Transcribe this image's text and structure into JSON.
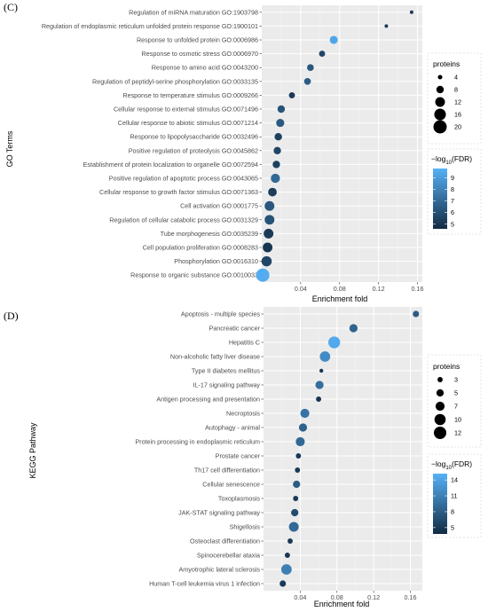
{
  "chart_data": [
    {
      "panel": "(C)",
      "type": "scatter",
      "xlabel": "Enrichment fold",
      "ylabel": "GO Terms",
      "xlim": [
        0,
        0.165
      ],
      "xticks": [
        0.04,
        0.08,
        0.12,
        0.16
      ],
      "xtick_labels": [
        "0.04",
        "0.08",
        "0.12",
        "0.16"
      ],
      "grid": true,
      "legend_placement": "right",
      "size_legend": {
        "title": "proteins",
        "values": [
          4,
          8,
          12,
          16,
          20
        ],
        "labels": [
          "4",
          "8",
          "12",
          "16",
          "20"
        ]
      },
      "color_legend": {
        "title_prefix": "−log",
        "title_sub": "10",
        "title_suffix": "(FDR)",
        "range": [
          4.6,
          9.8
        ],
        "ticks": [
          5,
          6,
          7,
          8,
          9
        ],
        "labels": [
          "5",
          "6",
          "7",
          "8",
          "9"
        ],
        "low_color": "#132b43",
        "high_color": "#56b1f7"
      },
      "points": [
        {
          "label": "Regulation of miRNA maturation GO:1903798",
          "x": 0.154,
          "size": 3,
          "color": 5.2
        },
        {
          "label": "Regulation of endoplasmic reticulum unfolded protein response GO:1900101",
          "x": 0.128,
          "size": 3,
          "color": 5.2
        },
        {
          "label": "Response to unfolded protein GO:0006986",
          "x": 0.074,
          "size": 9,
          "color": 9.3
        },
        {
          "label": "Response to osmotic stress GO:0006970",
          "x": 0.062,
          "size": 6,
          "color": 5.6
        },
        {
          "label": "Response to amino acid GO:0043200",
          "x": 0.05,
          "size": 7,
          "color": 6.3
        },
        {
          "label": "Regulation of peptidyl-serine phosphorylation GO:0033135",
          "x": 0.047,
          "size": 7,
          "color": 6.5
        },
        {
          "label": "Response to temperature stimulus GO:0009266",
          "x": 0.031,
          "size": 6,
          "color": 5.2
        },
        {
          "label": "Cellular response to external stimulus GO:0071496",
          "x": 0.02,
          "size": 8,
          "color": 6.2
        },
        {
          "label": "Cellular response to abiotic stimulus GO:0071214",
          "x": 0.019,
          "size": 9,
          "color": 6.4
        },
        {
          "label": "Response to lipopolysaccharide GO:0032496",
          "x": 0.017,
          "size": 8,
          "color": 5.4
        },
        {
          "label": "Positive regulation of proteolysis GO:0045862",
          "x": 0.016,
          "size": 8,
          "color": 5.6
        },
        {
          "label": "Establishment of protein localization to organelle GO:0072594",
          "x": 0.015,
          "size": 8,
          "color": 5.4
        },
        {
          "label": "Positive regulation of apoptotic process GO:0043065",
          "x": 0.014,
          "size": 11,
          "color": 7.0
        },
        {
          "label": "Cellular response to growth factor stimulus GO:0071363",
          "x": 0.011,
          "size": 10,
          "color": 5.3
        },
        {
          "label": "Cell activation GO:0001775",
          "x": 0.008,
          "size": 12,
          "color": 6.3
        },
        {
          "label": "Regulation of cellular catabolic process GO:0031329",
          "x": 0.008,
          "size": 12,
          "color": 6.1
        },
        {
          "label": "Tube morphogenesis GO:0035239",
          "x": 0.007,
          "size": 12,
          "color": 5.2
        },
        {
          "label": "Cell population proliferation GO:0008283",
          "x": 0.006,
          "size": 12,
          "color": 5.0
        },
        {
          "label": "Phosphorylation GO:0016310",
          "x": 0.005,
          "size": 13,
          "color": 5.6
        },
        {
          "label": "Response to organic substance GO:0010033",
          "x": 0.001,
          "size": 20,
          "color": 9.6
        }
      ]
    },
    {
      "panel": "(D)",
      "type": "scatter",
      "xlabel": "Enrichment fold",
      "ylabel": "KEGG Pathway",
      "xlim": [
        0,
        0.173
      ],
      "xticks": [
        0.04,
        0.08,
        0.12,
        0.16
      ],
      "xtick_labels": [
        "0.04",
        "0.08",
        "0.12",
        "0.16"
      ],
      "grid": true,
      "legend_placement": "right",
      "size_legend": {
        "title": "proteins",
        "values": [
          3,
          5,
          7,
          10,
          12
        ],
        "labels": [
          "3",
          "5",
          "7",
          "10",
          "12"
        ]
      },
      "color_legend": {
        "title_prefix": "−log",
        "title_sub": "10",
        "title_suffix": "(FDR)",
        "range": [
          3.8,
          15.2
        ],
        "ticks": [
          5,
          8,
          11,
          14
        ],
        "labels": [
          "5",
          "8",
          "11",
          "14"
        ],
        "low_color": "#132b43",
        "high_color": "#56b1f7"
      },
      "points": [
        {
          "label": "Apoptosis - multiple species",
          "x": 0.166,
          "size": 4,
          "color": 8.0
        },
        {
          "label": "Pancreatic cancer",
          "x": 0.098,
          "size": 6,
          "color": 8.5
        },
        {
          "label": "Hepatitis C",
          "x": 0.077,
          "size": 11,
          "color": 14.5
        },
        {
          "label": "Non-alcoholic fatty liver disease",
          "x": 0.067,
          "size": 9,
          "color": 12.0
        },
        {
          "label": "Type II diabetes mellitus",
          "x": 0.063,
          "size": 2,
          "color": 4.8
        },
        {
          "label": "IL-17 signaling pathway",
          "x": 0.061,
          "size": 6,
          "color": 9.5
        },
        {
          "label": "Antigen processing and presentation",
          "x": 0.06,
          "size": 3,
          "color": 4.6
        },
        {
          "label": "Necroptosis",
          "x": 0.045,
          "size": 7,
          "color": 10.0
        },
        {
          "label": "Autophagy - animal",
          "x": 0.043,
          "size": 6,
          "color": 8.5
        },
        {
          "label": "Protein processing in endoplasmic reticulum",
          "x": 0.04,
          "size": 7,
          "color": 9.0
        },
        {
          "label": "Prostate cancer",
          "x": 0.038,
          "size": 3,
          "color": 5.0
        },
        {
          "label": "Th17 cell differentiation",
          "x": 0.037,
          "size": 3,
          "color": 5.0
        },
        {
          "label": "Cellular senescence",
          "x": 0.036,
          "size": 5,
          "color": 8.0
        },
        {
          "label": "Toxoplasmosis",
          "x": 0.035,
          "size": 3,
          "color": 5.0
        },
        {
          "label": "JAK-STAT signaling pathway",
          "x": 0.034,
          "size": 5,
          "color": 6.5
        },
        {
          "label": "Shigellosis",
          "x": 0.033,
          "size": 8,
          "color": 9.0
        },
        {
          "label": "Osteoclast differentiation",
          "x": 0.029,
          "size": 3,
          "color": 5.0
        },
        {
          "label": "Spinocerebellar ataxia",
          "x": 0.026,
          "size": 3,
          "color": 4.8
        },
        {
          "label": "Amyotrophic lateral sclerosis",
          "x": 0.025,
          "size": 9,
          "color": 11.0
        },
        {
          "label": "Human T-cell leukemia virus 1 infection",
          "x": 0.021,
          "size": 4,
          "color": 5.0
        }
      ]
    }
  ]
}
